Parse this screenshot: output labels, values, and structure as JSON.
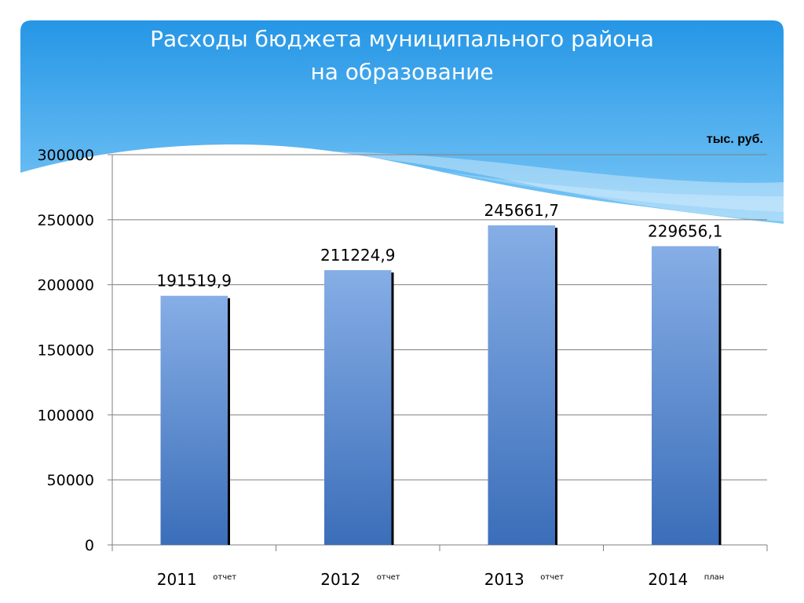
{
  "title_lines": [
    "Расходы бюджета муниципального района",
    "на образование"
  ],
  "unit": "тыс. руб.",
  "colors": {
    "header_top": "#2596e6",
    "header_bottom": "#7cc8f6",
    "bar_top": "#86aee6",
    "bar_bottom": "#3b6eb9",
    "bar_shadow": "#000000",
    "gridline": "#7f7f7f"
  },
  "chart_data": {
    "type": "bar",
    "categories": [
      "2011",
      "2012",
      "2013",
      "2014"
    ],
    "category_notes": [
      "отчет",
      "отчет",
      "отчет",
      "план"
    ],
    "values": [
      191519.9,
      211224.9,
      245661.7,
      229656.1
    ],
    "data_labels": [
      "191519,9",
      "211224,9",
      "245661,7",
      "229656,1"
    ],
    "yticks": [
      0,
      50000,
      100000,
      150000,
      200000,
      250000,
      300000
    ],
    "ylim": [
      0,
      300000
    ],
    "grid": true,
    "legend": "none"
  }
}
